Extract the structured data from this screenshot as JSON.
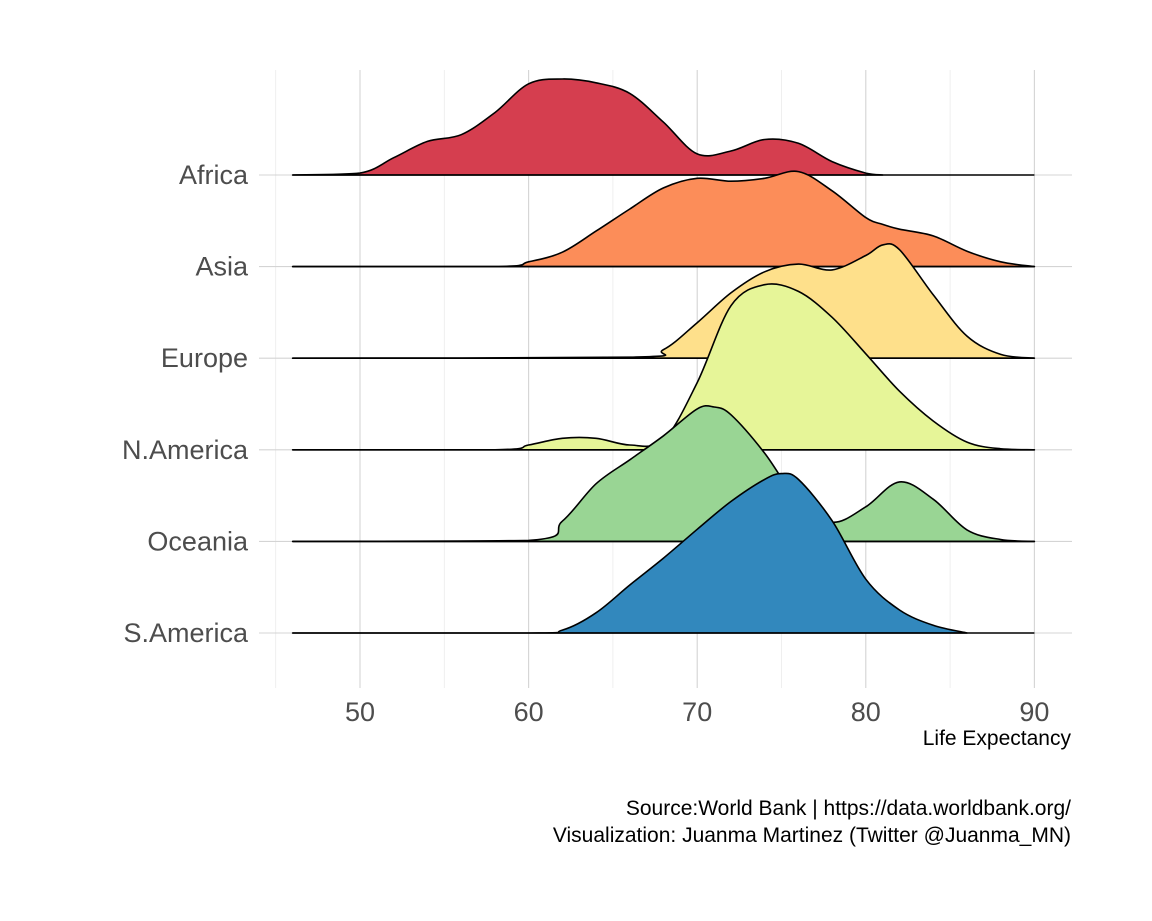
{
  "chart_data": {
    "type": "ridgeline",
    "title": "",
    "xlabel": "Life Expectancy",
    "ylabel": "",
    "xlim": [
      45,
      92
    ],
    "x_ticks": [
      50,
      60,
      70,
      80,
      90
    ],
    "x_tick_labels": [
      "50",
      "60",
      "70",
      "80",
      "90"
    ],
    "grid": true,
    "legend": "none",
    "caption_lines": [
      "Source:World Bank  | https://data.worldbank.org/",
      "Visualization: Juanma Martinez (Twitter @Juanma_MN)"
    ],
    "series": [
      {
        "name": "Africa",
        "color": "#d53e4f",
        "x": [
          46,
          50,
          52,
          54,
          56,
          58,
          60,
          62,
          64,
          66,
          68,
          70,
          72,
          74,
          76,
          78,
          80,
          81
        ],
        "value": [
          0,
          0.02,
          0.18,
          0.35,
          0.42,
          0.65,
          0.95,
          1.0,
          0.96,
          0.85,
          0.55,
          0.22,
          0.25,
          0.37,
          0.33,
          0.14,
          0.02,
          0
        ],
        "y_offset": 0
      },
      {
        "name": "Asia",
        "color": "#fc8d59",
        "x": [
          46,
          58,
          60,
          62,
          64,
          66,
          68,
          70,
          72,
          74,
          76,
          78,
          80,
          81,
          82,
          84,
          86,
          88,
          90
        ],
        "value": [
          0,
          0,
          0.05,
          0.15,
          0.37,
          0.6,
          0.82,
          0.92,
          0.89,
          0.92,
          0.99,
          0.79,
          0.51,
          0.44,
          0.39,
          0.32,
          0.16,
          0.05,
          0
        ],
        "y_offset": 1
      },
      {
        "name": "Europe",
        "color": "#fee08b",
        "x": [
          46,
          66,
          68,
          70,
          72,
          74,
          76,
          78,
          80,
          81,
          82,
          84,
          86,
          88,
          90
        ],
        "value": [
          0,
          0.01,
          0.09,
          0.37,
          0.68,
          0.9,
          0.98,
          0.92,
          1.07,
          1.18,
          1.13,
          0.66,
          0.23,
          0.04,
          0
        ],
        "y_offset": 2
      },
      {
        "name": "N.America",
        "color": "#e6f598",
        "x": [
          46,
          58,
          60,
          62,
          64,
          66,
          68,
          70,
          72,
          74,
          76,
          78,
          80,
          82,
          84,
          86,
          88,
          90
        ],
        "value": [
          0,
          0,
          0.05,
          0.12,
          0.12,
          0.05,
          0.1,
          0.7,
          1.5,
          1.72,
          1.65,
          1.38,
          1.0,
          0.61,
          0.3,
          0.08,
          0.01,
          0
        ],
        "y_offset": 3
      },
      {
        "name": "Oceania",
        "color": "#99d594",
        "x": [
          46,
          60,
          62,
          64,
          66,
          68,
          70,
          71,
          72,
          74,
          76,
          78,
          80,
          82,
          84,
          86,
          88,
          90
        ],
        "value": [
          0,
          0.01,
          0.21,
          0.6,
          0.85,
          1.1,
          1.38,
          1.4,
          1.32,
          0.92,
          0.42,
          0.2,
          0.36,
          0.62,
          0.44,
          0.12,
          0.02,
          0
        ],
        "y_offset": 4
      },
      {
        "name": "S.America",
        "color": "#3288bd",
        "x": [
          46,
          60,
          62,
          64,
          66,
          68,
          70,
          72,
          74,
          75,
          76,
          78,
          80,
          82,
          84,
          86
        ],
        "value": [
          0,
          0,
          0.03,
          0.21,
          0.5,
          0.78,
          1.08,
          1.37,
          1.6,
          1.66,
          1.6,
          1.17,
          0.56,
          0.24,
          0.08,
          0
        ],
        "y_offset": 5
      }
    ]
  }
}
